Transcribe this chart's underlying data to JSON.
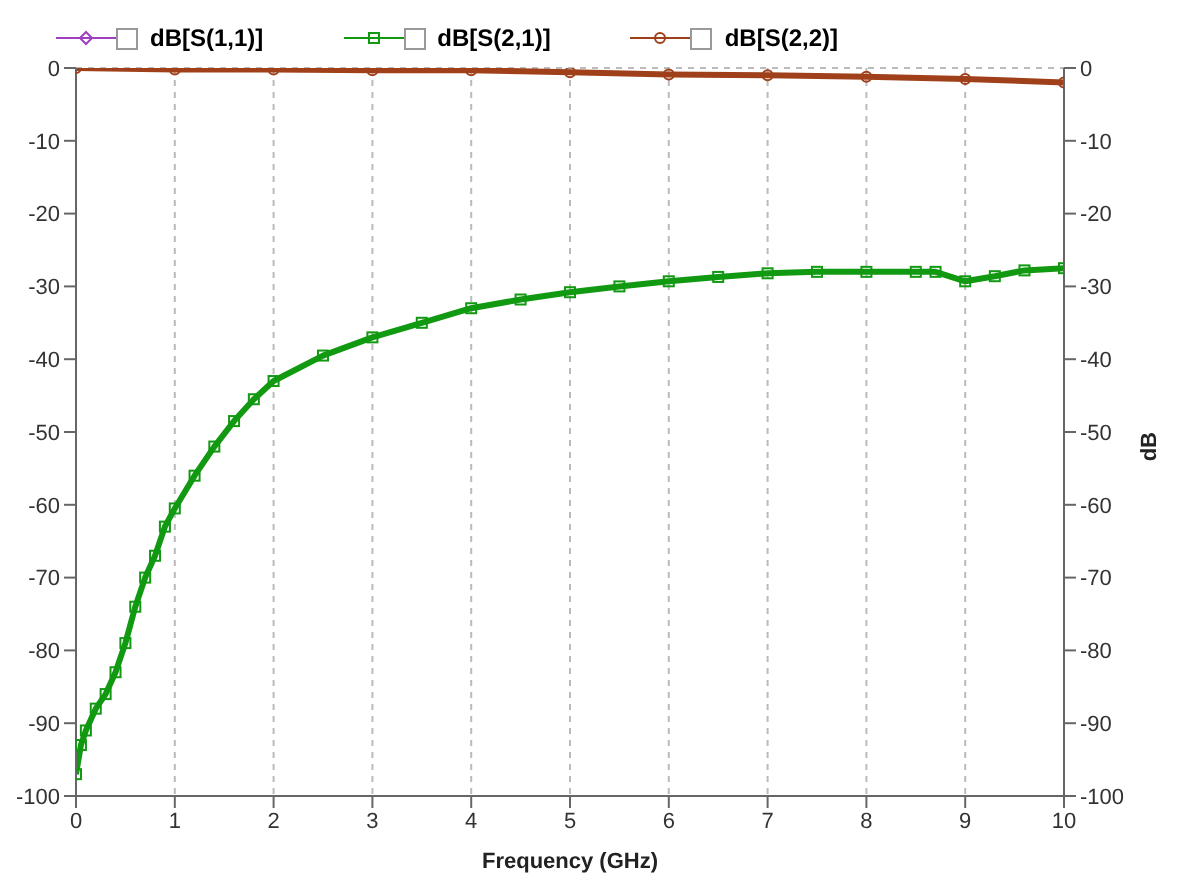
{
  "chart_data": {
    "type": "line",
    "xlabel": "Frequency (GHz)",
    "y2label": "dB",
    "xlim": [
      0,
      10
    ],
    "xticks": [
      0,
      1,
      2,
      3,
      4,
      5,
      6,
      7,
      8,
      9,
      10
    ],
    "ylim": [
      -100,
      0
    ],
    "yticks": [
      -100,
      -90,
      -80,
      -70,
      -60,
      -50,
      -40,
      -30,
      -20,
      -10,
      0
    ],
    "y2lim": [
      -100,
      0
    ],
    "y2ticks": [
      -100,
      -90,
      -80,
      -70,
      -60,
      -50,
      -40,
      -30,
      -20,
      -10,
      0
    ],
    "grid": true,
    "legend": "top left",
    "series": [
      {
        "name": "dB[S(1,1)]",
        "color": "#a040c0",
        "marker": "diamond"
      },
      {
        "name": "dB[S(2,1)]",
        "color": "#119911",
        "marker": "square",
        "x": [
          0,
          0.05,
          0.1,
          0.2,
          0.3,
          0.4,
          0.5,
          0.6,
          0.7,
          0.8,
          0.9,
          1,
          1.2,
          1.4,
          1.6,
          1.8,
          2,
          2.5,
          3,
          3.5,
          4,
          4.5,
          5,
          5.5,
          6,
          6.5,
          7,
          7.5,
          8,
          8.5,
          8.7,
          9,
          9.3,
          9.6,
          10
        ],
        "values": [
          -97,
          -93,
          -91,
          -88,
          -86,
          -83,
          -79,
          -74,
          -70,
          -67,
          -63,
          -60.5,
          -56,
          -52,
          -48.5,
          -45.5,
          -43,
          -39.5,
          -37,
          -35,
          -33,
          -31.8,
          -30.8,
          -30,
          -29.3,
          -28.7,
          -28.2,
          -28,
          -28,
          -28,
          -28,
          -29.3,
          -28.6,
          -27.8,
          -27.5
        ]
      },
      {
        "name": "dB[S(2,2)]",
        "color": "#a0401a",
        "marker": "circle",
        "x": [
          0,
          1,
          2,
          3,
          4,
          5,
          6,
          7,
          8,
          9,
          10
        ],
        "values": [
          0,
          -0.2,
          -0.2,
          -0.3,
          -0.3,
          -0.6,
          -0.9,
          -1,
          -1.2,
          -1.5,
          -2
        ]
      }
    ]
  }
}
